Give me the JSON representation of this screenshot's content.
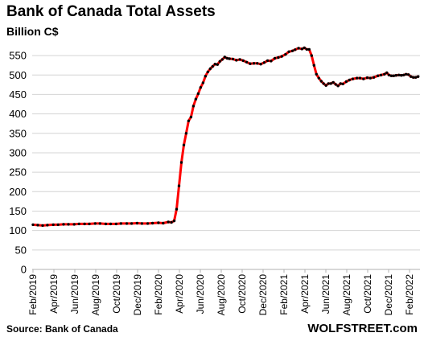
{
  "chart_data": {
    "type": "line",
    "title": "Bank of Canada Total Assets",
    "ylabel": "Billion C$",
    "ylim": [
      0,
      575
    ],
    "yticks": [
      0,
      50,
      100,
      150,
      200,
      250,
      300,
      350,
      400,
      450,
      500,
      550
    ],
    "x_tick_labels": [
      "Feb/2019",
      "Apr/2019",
      "Jun/2019",
      "Aug/2019",
      "Oct/2019",
      "Dec/2019",
      "Feb/2020",
      "Apr/2020",
      "Jun/2020",
      "Aug/2020",
      "Oct/2020",
      "Dec/2020",
      "Feb/2021",
      "Apr/2021",
      "Jun/2021",
      "Aug/2021",
      "Oct/2021",
      "Dec/2021",
      "Feb/2022"
    ],
    "x_start": "2019-02-01",
    "x_end": "2022-02-01",
    "grid": true,
    "line_color": "#ff0000",
    "marker_color": "#000000",
    "series": [
      {
        "points": [
          [
            "2019-02-01",
            115
          ],
          [
            "2019-02-15",
            114
          ],
          [
            "2019-03-01",
            113
          ],
          [
            "2019-03-15",
            114
          ],
          [
            "2019-04-01",
            115
          ],
          [
            "2019-04-15",
            115
          ],
          [
            "2019-05-01",
            116
          ],
          [
            "2019-05-15",
            116
          ],
          [
            "2019-06-01",
            116
          ],
          [
            "2019-06-15",
            117
          ],
          [
            "2019-07-01",
            117
          ],
          [
            "2019-07-15",
            117
          ],
          [
            "2019-08-01",
            118
          ],
          [
            "2019-08-15",
            118
          ],
          [
            "2019-09-01",
            117
          ],
          [
            "2019-09-15",
            117
          ],
          [
            "2019-10-01",
            117
          ],
          [
            "2019-10-15",
            118
          ],
          [
            "2019-11-01",
            118
          ],
          [
            "2019-11-15",
            118
          ],
          [
            "2019-12-01",
            119
          ],
          [
            "2019-12-15",
            118
          ],
          [
            "2020-01-01",
            118
          ],
          [
            "2020-01-15",
            119
          ],
          [
            "2020-02-01",
            120
          ],
          [
            "2020-02-15",
            119
          ],
          [
            "2020-03-01",
            122
          ],
          [
            "2020-03-10",
            121
          ],
          [
            "2020-03-18",
            125
          ],
          [
            "2020-03-25",
            155
          ],
          [
            "2020-04-01",
            215
          ],
          [
            "2020-04-08",
            275
          ],
          [
            "2020-04-15",
            320
          ],
          [
            "2020-04-22",
            350
          ],
          [
            "2020-04-29",
            382
          ],
          [
            "2020-05-06",
            392
          ],
          [
            "2020-05-13",
            420
          ],
          [
            "2020-05-20",
            438
          ],
          [
            "2020-05-27",
            452
          ],
          [
            "2020-06-03",
            468
          ],
          [
            "2020-06-10",
            480
          ],
          [
            "2020-06-17",
            497
          ],
          [
            "2020-06-24",
            508
          ],
          [
            "2020-07-01",
            516
          ],
          [
            "2020-07-08",
            522
          ],
          [
            "2020-07-15",
            528
          ],
          [
            "2020-07-22",
            527
          ],
          [
            "2020-07-29",
            535
          ],
          [
            "2020-08-05",
            540
          ],
          [
            "2020-08-12",
            546
          ],
          [
            "2020-08-19",
            543
          ],
          [
            "2020-08-26",
            542
          ],
          [
            "2020-09-05",
            541
          ],
          [
            "2020-09-15",
            538
          ],
          [
            "2020-09-25",
            540
          ],
          [
            "2020-10-05",
            537
          ],
          [
            "2020-10-15",
            533
          ],
          [
            "2020-10-25",
            529
          ],
          [
            "2020-11-05",
            530
          ],
          [
            "2020-11-15",
            530
          ],
          [
            "2020-11-25",
            528
          ],
          [
            "2020-12-05",
            532
          ],
          [
            "2020-12-15",
            537
          ],
          [
            "2020-12-25",
            536
          ],
          [
            "2021-01-05",
            543
          ],
          [
            "2021-01-15",
            545
          ],
          [
            "2021-01-25",
            548
          ],
          [
            "2021-02-05",
            553
          ],
          [
            "2021-02-15",
            560
          ],
          [
            "2021-02-25",
            562
          ],
          [
            "2021-03-05",
            565
          ],
          [
            "2021-03-15",
            569
          ],
          [
            "2021-03-25",
            567
          ],
          [
            "2021-04-01",
            570
          ],
          [
            "2021-04-08",
            566
          ],
          [
            "2021-04-15",
            566
          ],
          [
            "2021-04-22",
            550
          ],
          [
            "2021-04-29",
            525
          ],
          [
            "2021-05-06",
            502
          ],
          [
            "2021-05-13",
            492
          ],
          [
            "2021-05-20",
            484
          ],
          [
            "2021-05-27",
            478
          ],
          [
            "2021-06-03",
            473
          ],
          [
            "2021-06-10",
            478
          ],
          [
            "2021-06-17",
            478
          ],
          [
            "2021-06-24",
            481
          ],
          [
            "2021-07-01",
            476
          ],
          [
            "2021-07-08",
            472
          ],
          [
            "2021-07-15",
            478
          ],
          [
            "2021-07-22",
            477
          ],
          [
            "2021-08-01",
            483
          ],
          [
            "2021-08-10",
            487
          ],
          [
            "2021-08-20",
            490
          ],
          [
            "2021-09-01",
            492
          ],
          [
            "2021-09-10",
            492
          ],
          [
            "2021-09-20",
            490
          ],
          [
            "2021-10-01",
            493
          ],
          [
            "2021-10-10",
            492
          ],
          [
            "2021-10-20",
            494
          ],
          [
            "2021-11-01",
            498
          ],
          [
            "2021-11-10",
            500
          ],
          [
            "2021-11-20",
            502
          ],
          [
            "2021-11-27",
            506
          ],
          [
            "2021-12-03",
            500
          ],
          [
            "2021-12-10",
            498
          ],
          [
            "2021-12-17",
            498
          ],
          [
            "2021-12-24",
            499
          ],
          [
            "2022-01-01",
            500
          ],
          [
            "2022-01-08",
            499
          ],
          [
            "2022-01-15",
            500
          ],
          [
            "2022-01-22",
            502
          ],
          [
            "2022-01-29",
            501
          ],
          [
            "2022-02-05",
            496
          ],
          [
            "2022-02-12",
            494
          ],
          [
            "2022-02-19",
            494
          ],
          [
            "2022-02-26",
            496
          ]
        ]
      }
    ]
  },
  "footer": {
    "source": "Source: Bank of Canada",
    "brand": "WOLFSTREET.com"
  }
}
